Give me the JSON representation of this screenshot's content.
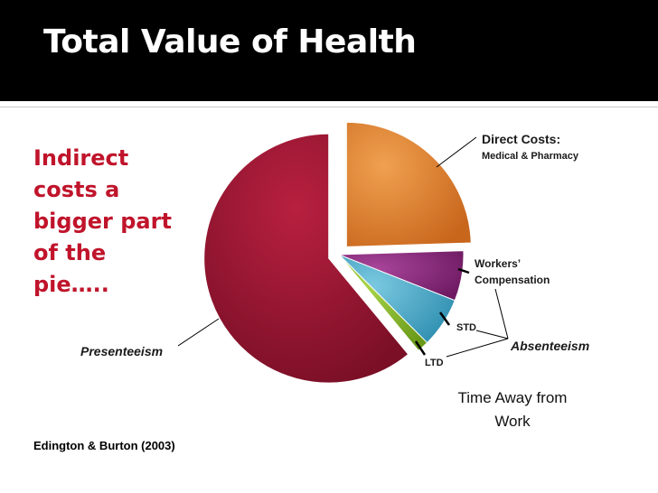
{
  "title": "Total Value of Health",
  "side_text": [
    "Indirect",
    "costs a",
    "bigger part",
    "of the",
    "pie….."
  ],
  "citation": "Edington & Burton (2003)",
  "labels": {
    "direct_title": "Direct Costs:",
    "direct_sub": "Medical & Pharmacy",
    "workers_1": "Workers’",
    "workers_2": "Compensation",
    "std": "STD",
    "ltd": "LTD",
    "absenteeism": "Absenteeism",
    "presenteeism": "Presenteeism",
    "time_away_1": "Time Away from",
    "time_away_2": "Work"
  },
  "chart_data": {
    "type": "pie",
    "slices": [
      {
        "label": "Direct Costs: Medical & Pharmacy",
        "value": 24.5,
        "color": "#e0802a",
        "exploded": true
      },
      {
        "label": "Workers’ Compensation",
        "value": 6.5,
        "color": "#8c2a7e",
        "exploded": false
      },
      {
        "label": "STD",
        "value": 6.5,
        "color": "#4aa7c6",
        "exploded": false
      },
      {
        "label": "LTD",
        "value": 1.5,
        "color": "#8ab82a",
        "exploded": false
      },
      {
        "label": "Presenteeism",
        "value": 61.0,
        "color": "#a81a3a",
        "exploded": true
      }
    ],
    "grouping": {
      "Absenteeism": [
        "Workers’ Compensation",
        "STD",
        "LTD"
      ],
      "Time Away from Work": [
        "Absenteeism"
      ]
    }
  }
}
